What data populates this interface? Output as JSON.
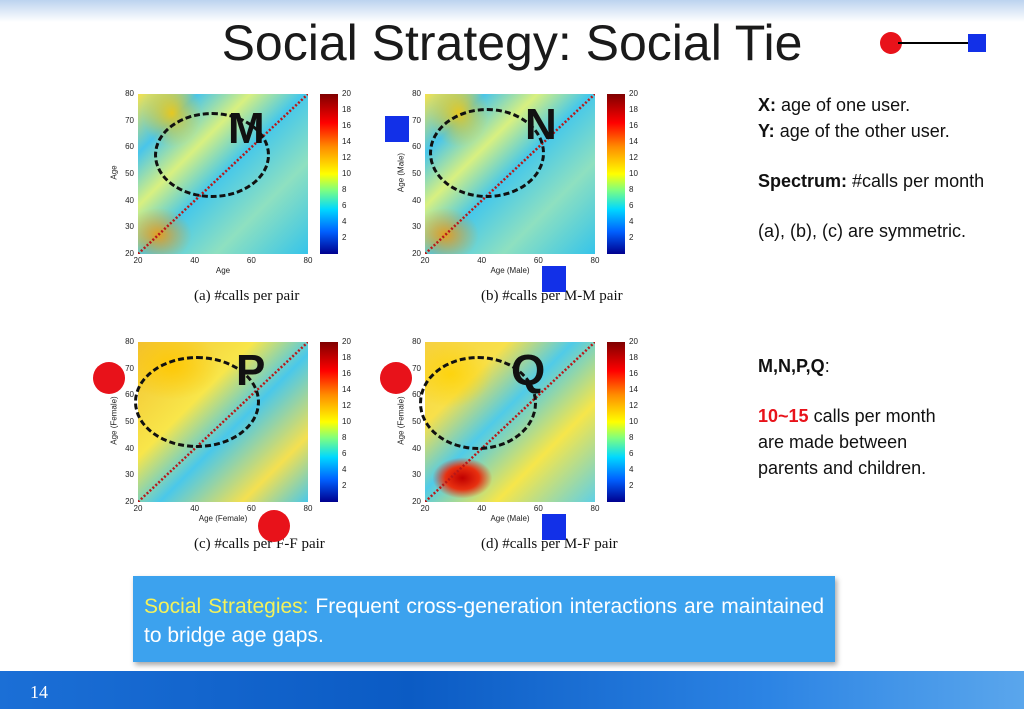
{
  "slide": {
    "title": "Social Strategy: Social Tie",
    "page_number": "14"
  },
  "colors": {
    "accent_red": "#e8121a",
    "accent_blue": "#1230e8",
    "callout_bg": "#3ca2ee",
    "callout_highlight": "#f4f25a"
  },
  "legend": {
    "icon": "red-circle-to-blue-square-tie-icon"
  },
  "notes": {
    "x_label": "X:",
    "x_text": "age of one user.",
    "y_label": "Y:",
    "y_text": "age of the other user.",
    "spectrum_label": "Spectrum:",
    "spectrum_text": "#calls per month",
    "symmetry": "(a), (b), (c) are symmetric.",
    "mnpq_label": "M,N,P,Q",
    "mnpq_colon": ":",
    "range_highlight": "10~15",
    "range_text_1": "calls per month",
    "range_text_2": "are made between",
    "range_text_3": "parents and children."
  },
  "callout": {
    "highlight": "Social Strategies:",
    "text": "Frequent cross-generation interactions are maintained to bridge age gaps."
  },
  "chart_data": [
    {
      "type": "heatmap",
      "caption": "(a)  #calls per pair",
      "annotation": "M",
      "xlabel": "Age",
      "ylabel": "Age",
      "x_ticks": [
        "20",
        "40",
        "60",
        "80"
      ],
      "y_ticks": [
        "80",
        "70",
        "60",
        "50",
        "40",
        "30",
        "20"
      ],
      "xlim": [
        20,
        80
      ],
      "ylim": [
        20,
        80
      ],
      "colorbar_ticks": [
        "20",
        "18",
        "16",
        "14",
        "12",
        "10",
        "8",
        "6",
        "4",
        "2"
      ],
      "colorbar_range": [
        0,
        20
      ],
      "markers": []
    },
    {
      "type": "heatmap",
      "caption": "(b)  #calls per M-M pair",
      "annotation": "N",
      "xlabel": "Age (Male)",
      "ylabel": "Age (Male)",
      "x_ticks": [
        "20",
        "40",
        "60",
        "80"
      ],
      "y_ticks": [
        "80",
        "70",
        "60",
        "50",
        "40",
        "30",
        "20"
      ],
      "xlim": [
        20,
        80
      ],
      "ylim": [
        20,
        80
      ],
      "colorbar_ticks": [
        "20",
        "18",
        "16",
        "14",
        "12",
        "10",
        "8",
        "6",
        "4",
        "2"
      ],
      "colorbar_range": [
        0,
        20
      ],
      "markers": [
        "blue-square-y",
        "blue-square-x"
      ]
    },
    {
      "type": "heatmap",
      "caption": "(c)  #calls per F-F pair",
      "annotation": "P",
      "xlabel": "Age (Female)",
      "ylabel": "Age (Female)",
      "x_ticks": [
        "20",
        "40",
        "60",
        "80"
      ],
      "y_ticks": [
        "80",
        "70",
        "60",
        "50",
        "40",
        "30",
        "20"
      ],
      "xlim": [
        20,
        80
      ],
      "ylim": [
        20,
        80
      ],
      "colorbar_ticks": [
        "20",
        "18",
        "16",
        "14",
        "12",
        "10",
        "8",
        "6",
        "4",
        "2"
      ],
      "colorbar_range": [
        0,
        20
      ],
      "markers": [
        "red-circle-y",
        "red-circle-x"
      ]
    },
    {
      "type": "heatmap",
      "caption": "(d)  #calls per M-F pair",
      "annotation": "Q",
      "xlabel": "Age (Male)",
      "ylabel": "Age (Female)",
      "x_ticks": [
        "20",
        "40",
        "60",
        "80"
      ],
      "y_ticks": [
        "80",
        "70",
        "60",
        "50",
        "40",
        "30",
        "20"
      ],
      "xlim": [
        20,
        80
      ],
      "ylim": [
        20,
        80
      ],
      "colorbar_ticks": [
        "20",
        "18",
        "16",
        "14",
        "12",
        "10",
        "8",
        "6",
        "4",
        "2"
      ],
      "colorbar_range": [
        0,
        20
      ],
      "markers": [
        "red-circle-y",
        "blue-square-x"
      ]
    }
  ]
}
